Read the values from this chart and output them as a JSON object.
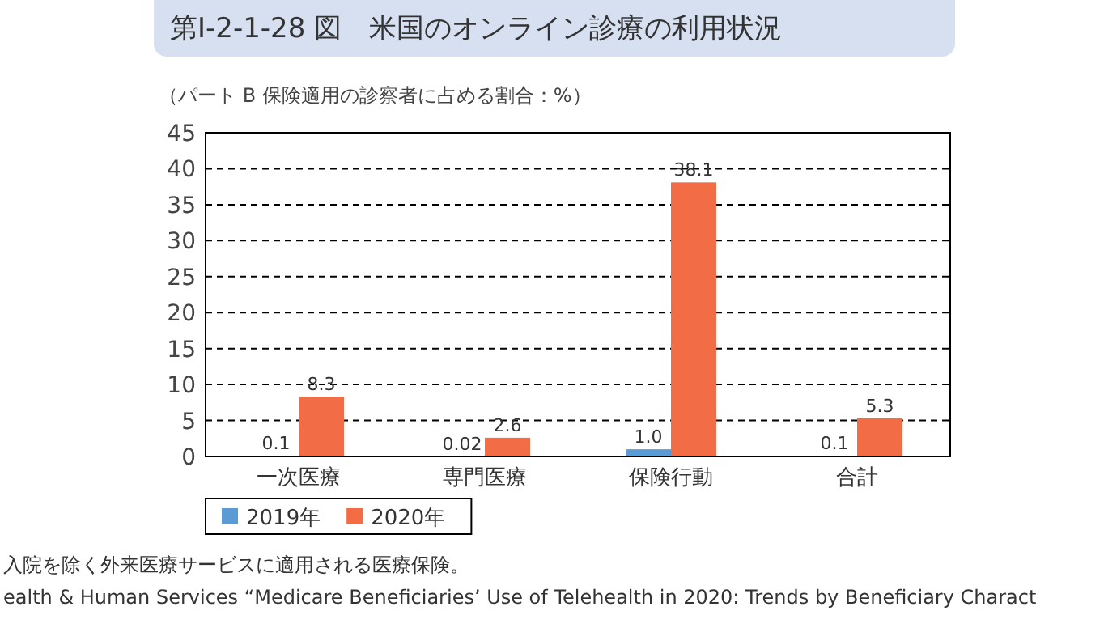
{
  "chart_data": {
    "type": "bar",
    "title": "第Ⅰ-2-1-28 図　米国のオンライン診療の利用状況",
    "ylabel": "（パート B 保険適用の診察者に占める割合：%）",
    "categories": [
      "一次医療",
      "専門医療",
      "保険行動",
      "合計"
    ],
    "series": [
      {
        "name": "2019年",
        "color": "#5b9bd5",
        "values": [
          0.1,
          0.02,
          1.0,
          0.1
        ],
        "value_labels": [
          "0.1",
          "0.02",
          "1.0",
          "0.1"
        ]
      },
      {
        "name": "2020年",
        "color": "#f26d45",
        "values": [
          8.3,
          2.6,
          38.1,
          5.3
        ],
        "value_labels": [
          "8.3",
          "2.6",
          "38.1",
          "5.3"
        ]
      }
    ],
    "ylim": [
      0,
      45
    ],
    "yticks": [
      0,
      5,
      10,
      15,
      20,
      25,
      30,
      35,
      40,
      45
    ],
    "grid": "y",
    "legend": "bottom left",
    "annotations": [
      "入院を除く外来医療サービスに適用される医療保険。",
      "ealth & Human Services “Medicare Beneficiaries’ Use of Telehealth in 2020: Trends by Beneficiary Charact"
    ]
  }
}
